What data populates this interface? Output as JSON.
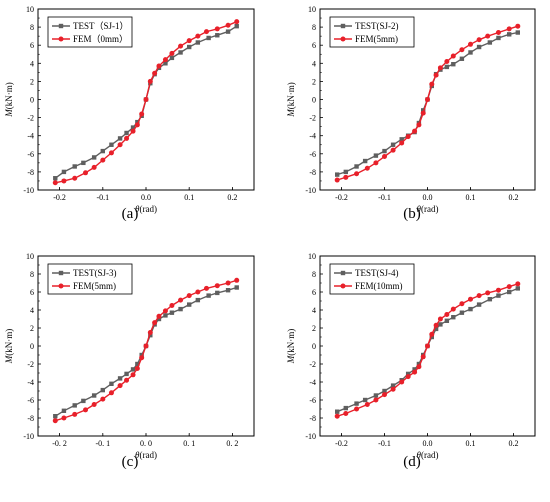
{
  "figure": {
    "series_colors": {
      "test": "#5f5f5f",
      "fem": "#e8202a"
    }
  },
  "chart_data": [
    {
      "panel": "(a)",
      "type": "line",
      "xlabel_symbol": "θ",
      "xlabel": "(rad)",
      "ylabel_symbol": "M",
      "ylabel": "(kN·m)",
      "xlim": [
        -0.25,
        0.25
      ],
      "ylim": [
        -10,
        10
      ],
      "xticks": [
        "-0.2",
        "-0.1",
        "0.0",
        "0.1",
        "0.2"
      ],
      "xtick_values": [
        -0.2,
        -0.1,
        0.0,
        0.1,
        0.2
      ],
      "yticks": [
        "-10",
        "-8",
        "-6",
        "-4",
        "-2",
        "0",
        "2",
        "4",
        "6",
        "8",
        "10"
      ],
      "ytick_values": [
        -10,
        -8,
        -6,
        -4,
        -2,
        0,
        2,
        4,
        6,
        8,
        10
      ],
      "grid": false,
      "legend_position": "top-left",
      "series": [
        {
          "name": "TEST（SJ-1）",
          "color": "#5f5f5f",
          "marker": "square",
          "x": [
            -0.21,
            -0.19,
            -0.165,
            -0.145,
            -0.12,
            -0.1,
            -0.08,
            -0.06,
            -0.045,
            -0.03,
            -0.02,
            -0.01,
            0.0,
            0.01,
            0.02,
            0.03,
            0.045,
            0.06,
            0.08,
            0.1,
            0.12,
            0.145,
            0.165,
            0.19,
            0.21
          ],
          "y": [
            -8.7,
            -8.0,
            -7.4,
            -7.0,
            -6.4,
            -5.7,
            -5.0,
            -4.3,
            -3.7,
            -3.1,
            -2.5,
            -1.8,
            0.0,
            1.8,
            2.8,
            3.5,
            4.0,
            4.6,
            5.2,
            5.8,
            6.3,
            6.8,
            7.1,
            7.5,
            8.1
          ]
        },
        {
          "name": "FEM（0mm）",
          "color": "#e8202a",
          "marker": "circle",
          "x": [
            -0.21,
            -0.19,
            -0.165,
            -0.14,
            -0.12,
            -0.1,
            -0.08,
            -0.06,
            -0.045,
            -0.03,
            -0.02,
            -0.01,
            0.0,
            0.01,
            0.02,
            0.03,
            0.045,
            0.06,
            0.08,
            0.1,
            0.12,
            0.14,
            0.165,
            0.19,
            0.21
          ],
          "y": [
            -9.2,
            -9.0,
            -8.7,
            -8.1,
            -7.5,
            -6.7,
            -5.9,
            -5.0,
            -4.3,
            -3.5,
            -2.8,
            -1.6,
            0.0,
            2.0,
            2.9,
            3.7,
            4.4,
            5.1,
            5.9,
            6.5,
            7.0,
            7.5,
            7.8,
            8.2,
            8.6
          ]
        }
      ]
    },
    {
      "panel": "(b)",
      "type": "line",
      "xlabel_symbol": "θ",
      "xlabel": "(rad)",
      "ylabel_symbol": "M",
      "ylabel": "(kN·m)",
      "xlim": [
        -0.25,
        0.25
      ],
      "ylim": [
        -10,
        10
      ],
      "xticks": [
        "-0.2",
        "-0.1",
        "0.0",
        "0.1",
        "0.2"
      ],
      "xtick_values": [
        -0.2,
        -0.1,
        0.0,
        0.1,
        0.2
      ],
      "yticks": [
        "-10",
        "-8",
        "-6",
        "-4",
        "-2",
        "0",
        "2",
        "4",
        "6",
        "8",
        "10"
      ],
      "ytick_values": [
        -10,
        -8,
        -6,
        -4,
        -2,
        0,
        2,
        4,
        6,
        8,
        10
      ],
      "grid": false,
      "legend_position": "top-left",
      "series": [
        {
          "name": "TEST(SJ-2)",
          "color": "#5f5f5f",
          "marker": "square",
          "x": [
            -0.21,
            -0.19,
            -0.165,
            -0.145,
            -0.12,
            -0.1,
            -0.08,
            -0.06,
            -0.045,
            -0.03,
            -0.02,
            -0.01,
            0.0,
            0.01,
            0.02,
            0.03,
            0.045,
            0.06,
            0.08,
            0.1,
            0.12,
            0.145,
            0.165,
            0.19,
            0.21
          ],
          "y": [
            -8.3,
            -8.0,
            -7.4,
            -6.8,
            -6.2,
            -5.7,
            -5.0,
            -4.4,
            -4.0,
            -3.6,
            -2.6,
            -1.2,
            0.0,
            1.5,
            2.8,
            3.3,
            3.6,
            3.9,
            4.5,
            5.2,
            5.8,
            6.3,
            6.8,
            7.2,
            7.4
          ]
        },
        {
          "name": "FEM(5mm)",
          "color": "#e8202a",
          "marker": "circle",
          "x": [
            -0.21,
            -0.19,
            -0.165,
            -0.14,
            -0.12,
            -0.1,
            -0.08,
            -0.06,
            -0.045,
            -0.03,
            -0.02,
            -0.01,
            0.0,
            0.01,
            0.02,
            0.03,
            0.045,
            0.06,
            0.08,
            0.1,
            0.12,
            0.14,
            0.165,
            0.19,
            0.21
          ],
          "y": [
            -8.9,
            -8.6,
            -8.2,
            -7.6,
            -7.0,
            -6.3,
            -5.6,
            -4.8,
            -4.1,
            -3.5,
            -2.8,
            -1.5,
            0.0,
            1.7,
            2.7,
            3.5,
            4.2,
            4.8,
            5.5,
            6.1,
            6.6,
            7.0,
            7.4,
            7.8,
            8.1
          ]
        }
      ]
    },
    {
      "panel": "(c)",
      "type": "line",
      "xlabel_symbol": "θ",
      "xlabel": "(rad)",
      "ylabel_symbol": "M",
      "ylabel": "(kN·m)",
      "xlim": [
        -0.25,
        0.25
      ],
      "ylim": [
        -10,
        10
      ],
      "xticks": [
        "-0. 2",
        "-0. 1",
        "0. 0",
        "0. 1",
        "0. 2"
      ],
      "xtick_values": [
        -0.2,
        -0.1,
        0.0,
        0.1,
        0.2
      ],
      "yticks": [
        "-10",
        "-8",
        "-6",
        "-4",
        "-2",
        "0",
        "2",
        "4",
        "6",
        "8",
        "10"
      ],
      "ytick_values": [
        -10,
        -8,
        -6,
        -4,
        -2,
        0,
        2,
        4,
        6,
        8,
        10
      ],
      "grid": false,
      "legend_position": "top-left",
      "series": [
        {
          "name": "TEST(SJ-3)",
          "color": "#5f5f5f",
          "marker": "square",
          "x": [
            -0.21,
            -0.19,
            -0.165,
            -0.145,
            -0.12,
            -0.1,
            -0.08,
            -0.06,
            -0.045,
            -0.03,
            -0.02,
            -0.01,
            0.0,
            0.01,
            0.02,
            0.03,
            0.045,
            0.06,
            0.08,
            0.1,
            0.12,
            0.145,
            0.165,
            0.19,
            0.21
          ],
          "y": [
            -7.8,
            -7.2,
            -6.6,
            -6.1,
            -5.5,
            -4.9,
            -4.2,
            -3.6,
            -3.1,
            -2.6,
            -2.0,
            -1.0,
            0.0,
            1.2,
            2.4,
            3.0,
            3.4,
            3.7,
            4.1,
            4.6,
            5.1,
            5.6,
            5.9,
            6.2,
            6.5
          ]
        },
        {
          "name": "FEM(5mm)",
          "color": "#e8202a",
          "marker": "circle",
          "x": [
            -0.21,
            -0.19,
            -0.165,
            -0.14,
            -0.12,
            -0.1,
            -0.08,
            -0.06,
            -0.045,
            -0.03,
            -0.02,
            -0.01,
            0.0,
            0.01,
            0.02,
            0.03,
            0.045,
            0.06,
            0.08,
            0.1,
            0.12,
            0.14,
            0.165,
            0.19,
            0.21
          ],
          "y": [
            -8.3,
            -8.0,
            -7.6,
            -7.1,
            -6.5,
            -5.9,
            -5.2,
            -4.4,
            -3.8,
            -3.2,
            -2.5,
            -1.3,
            0.0,
            1.5,
            2.6,
            3.3,
            3.9,
            4.5,
            5.1,
            5.6,
            6.0,
            6.4,
            6.7,
            7.0,
            7.3
          ]
        }
      ]
    },
    {
      "panel": "(d)",
      "type": "line",
      "xlabel_symbol": "θ",
      "xlabel": "(rad)",
      "ylabel_symbol": "M",
      "ylabel": "(kN·m)",
      "xlim": [
        -0.25,
        0.25
      ],
      "ylim": [
        -10,
        10
      ],
      "xticks": [
        "-0.2",
        "-0.1",
        "0.0",
        "0.1",
        "0.2"
      ],
      "xtick_values": [
        -0.2,
        -0.1,
        0.0,
        0.1,
        0.2
      ],
      "yticks": [
        "-10",
        "-8",
        "-6",
        "-4",
        "-2",
        "0",
        "2",
        "4",
        "6",
        "8",
        "10"
      ],
      "ytick_values": [
        -10,
        -8,
        -6,
        -4,
        -2,
        0,
        2,
        4,
        6,
        8,
        10
      ],
      "grid": false,
      "legend_position": "top-left",
      "series": [
        {
          "name": "TEST(SJ-4)",
          "color": "#5f5f5f",
          "marker": "square",
          "x": [
            -0.21,
            -0.19,
            -0.165,
            -0.145,
            -0.12,
            -0.1,
            -0.08,
            -0.06,
            -0.045,
            -0.03,
            -0.02,
            -0.01,
            0.0,
            0.01,
            0.02,
            0.03,
            0.045,
            0.06,
            0.08,
            0.1,
            0.12,
            0.145,
            0.165,
            0.19,
            0.21
          ],
          "y": [
            -7.3,
            -6.9,
            -6.4,
            -6.0,
            -5.5,
            -5.0,
            -4.4,
            -3.8,
            -3.1,
            -2.6,
            -2.0,
            -1.0,
            0.0,
            1.0,
            1.9,
            2.4,
            2.8,
            3.2,
            3.7,
            4.1,
            4.6,
            5.2,
            5.6,
            6.0,
            6.4
          ]
        },
        {
          "name": "FEM(10mm)",
          "color": "#e8202a",
          "marker": "circle",
          "x": [
            -0.21,
            -0.19,
            -0.165,
            -0.14,
            -0.12,
            -0.1,
            -0.08,
            -0.06,
            -0.045,
            -0.03,
            -0.02,
            -0.01,
            0.0,
            0.01,
            0.02,
            0.03,
            0.045,
            0.06,
            0.08,
            0.1,
            0.12,
            0.14,
            0.165,
            0.19,
            0.21
          ],
          "y": [
            -7.8,
            -7.5,
            -7.0,
            -6.5,
            -6.0,
            -5.4,
            -4.8,
            -4.0,
            -3.4,
            -2.9,
            -2.3,
            -1.2,
            0.0,
            1.3,
            2.3,
            3.0,
            3.5,
            4.1,
            4.7,
            5.2,
            5.6,
            5.9,
            6.2,
            6.6,
            6.9
          ]
        }
      ]
    }
  ]
}
